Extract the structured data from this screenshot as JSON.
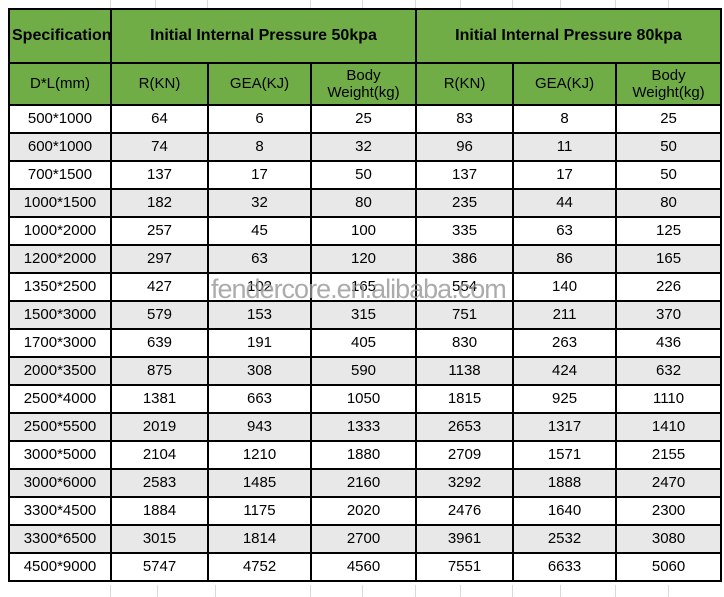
{
  "watermark": "fendercore.en.alibaba.com",
  "colors": {
    "header_green": "#70ad47",
    "row_alt_gray": "#e8e8e8",
    "border_black": "#000000",
    "gridline_gray": "#d9d9d9",
    "watermark_gray": "#969696"
  },
  "header": {
    "specification": "Specification",
    "group_50kpa": "Initial Internal Pressure  50kpa",
    "group_80kpa": "Initial Internal Pressure  80kpa",
    "spec_sub": "D*L(mm)",
    "sub": [
      "R(KN)",
      "GEA(KJ)",
      "Body Weight(kg)",
      "R(KN)",
      "GEA(KJ)",
      "Body Weight(kg)"
    ]
  },
  "chart_data": {
    "type": "table",
    "title": "Pneumatic fender specification table: R and GEA at initial internal pressure 50kpa and 80kpa",
    "columns": [
      "D*L(mm)",
      "50kpa R(KN)",
      "50kpa GEA(KJ)",
      "50kpa Body Weight(kg)",
      "80kpa R(KN)",
      "80kpa GEA(KJ)",
      "80kpa Body Weight(kg)"
    ],
    "rows": [
      [
        "500*1000",
        64,
        6,
        25,
        83,
        8,
        25
      ],
      [
        "600*1000",
        74,
        8,
        32,
        96,
        11,
        50
      ],
      [
        "700*1500",
        137,
        17,
        50,
        137,
        17,
        50
      ],
      [
        "1000*1500",
        182,
        32,
        80,
        235,
        44,
        80
      ],
      [
        "1000*2000",
        257,
        45,
        100,
        335,
        63,
        125
      ],
      [
        "1200*2000",
        297,
        63,
        120,
        386,
        86,
        165
      ],
      [
        "1350*2500",
        427,
        102,
        165,
        554,
        140,
        226
      ],
      [
        "1500*3000",
        579,
        153,
        315,
        751,
        211,
        370
      ],
      [
        "1700*3000",
        639,
        191,
        405,
        830,
        263,
        436
      ],
      [
        "2000*3500",
        875,
        308,
        590,
        1138,
        424,
        632
      ],
      [
        "2500*4000",
        1381,
        663,
        1050,
        1815,
        925,
        1110
      ],
      [
        "2500*5500",
        2019,
        943,
        1333,
        2653,
        1317,
        1410
      ],
      [
        "3000*5000",
        2104,
        1210,
        1880,
        2709,
        1571,
        2155
      ],
      [
        "3000*6000",
        2583,
        1485,
        2160,
        3292,
        1888,
        2470
      ],
      [
        "3300*4500",
        1884,
        1175,
        2020,
        2476,
        1640,
        2300
      ],
      [
        "3300*6500",
        3015,
        1814,
        2700,
        3961,
        2532,
        3080
      ],
      [
        "4500*9000",
        5747,
        4752,
        4560,
        7551,
        6633,
        5060
      ]
    ]
  }
}
